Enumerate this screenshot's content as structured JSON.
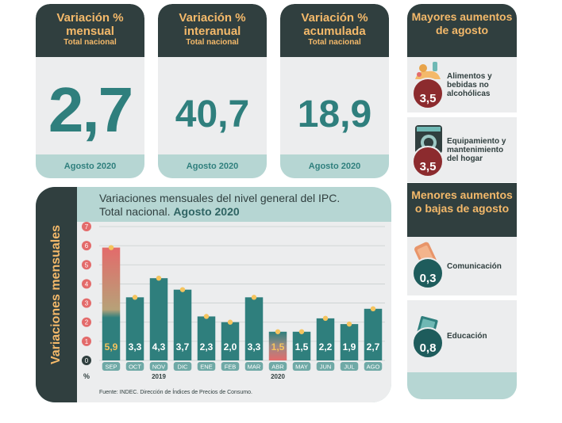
{
  "kpis": [
    {
      "title": "Variación % mensual",
      "sub": "Total nacional",
      "value": "2,7",
      "foot": "Agosto 2020"
    },
    {
      "title": "Variación % interanual",
      "sub": "Total nacional",
      "value": "40,7",
      "foot": "Agosto 2020"
    },
    {
      "title": "Variación % acumulada",
      "sub": "Total nacional",
      "value": "18,9",
      "foot": "Agosto 2020"
    }
  ],
  "chart_panel": {
    "side_label": "Variaciones mensuales",
    "title_line1": "Variaciones mensuales del nivel general del IPC.",
    "title_line2_prefix": "Total nacional.",
    "title_line2_bold": "Agosto 2020",
    "source": "Fuente: INDEC. Dirección de Índices de Precios de Consumo."
  },
  "chart_data": {
    "type": "bar",
    "title": "Variaciones mensuales del nivel general del IPC. Total nacional. Agosto 2020",
    "ylabel": "%",
    "ylim": [
      0,
      7
    ],
    "yticks": [
      0,
      1,
      2,
      3,
      4,
      5,
      6,
      7
    ],
    "categories": [
      "SEP",
      "OCT",
      "NOV",
      "DIC",
      "ENE",
      "FEB",
      "MAR",
      "ABR",
      "MAY",
      "JUN",
      "JUL",
      "AGO"
    ],
    "values": [
      5.9,
      3.3,
      4.3,
      3.7,
      2.3,
      2.0,
      3.3,
      1.5,
      1.5,
      2.2,
      1.9,
      2.7
    ],
    "value_labels": [
      "5,9",
      "3,3",
      "4,3",
      "3,7",
      "2,3",
      "2,0",
      "3,3",
      "1,5",
      "1,5",
      "2,2",
      "1,9",
      "2,7"
    ],
    "year_labels": [
      {
        "text": "2019",
        "category": "NOV"
      },
      {
        "text": "2020",
        "category": "ABR"
      }
    ],
    "grid": true,
    "colors": {
      "bar": "#2f7f7d",
      "highlight_top": "#e36b6b",
      "highlight_mid": "#b7a178",
      "dot": "#f5c45e",
      "axis_pill": "#e36b6b"
    }
  },
  "mayores": {
    "title": "Mayores aumentos de agosto",
    "items": [
      {
        "label": "Alimentos y bebidas no alcohólicas",
        "value": "3,5",
        "icon": "food-icon"
      },
      {
        "label": "Equipamiento y mantenimiento del hogar",
        "value": "3,5",
        "icon": "washing-machine-icon"
      }
    ]
  },
  "menores": {
    "title": "Menores aumentos o bajas de agosto",
    "items": [
      {
        "label": "Comunicación",
        "value": "0,3",
        "icon": "phone-icon"
      },
      {
        "label": "Educación",
        "value": "0,8",
        "icon": "book-icon"
      }
    ]
  },
  "colors": {
    "dark": "#303f3f",
    "accent": "#f4b96a",
    "teal": "#2f7f7d",
    "light_teal": "#b6d6d3",
    "gray": "#ecedee",
    "red": "#8c2b2e"
  }
}
